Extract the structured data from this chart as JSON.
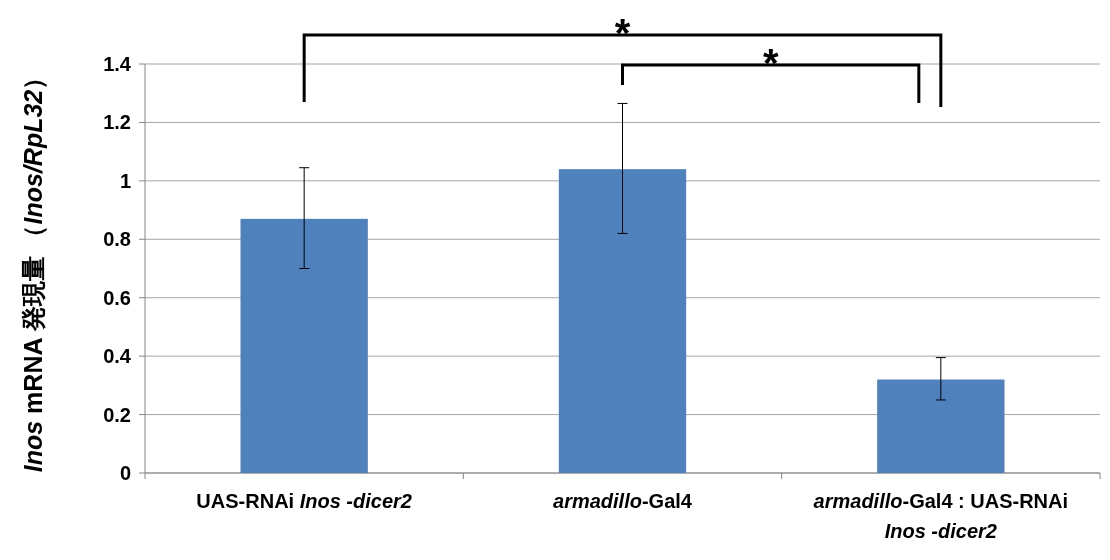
{
  "chart_data": {
    "type": "bar",
    "ylabel": "*Inos* mRNA 発現量 （*Inos/RpL32*）",
    "categories": [
      "UAS-RNAi *Inos -dicer2*",
      "*armadillo*-Gal4",
      "*armadillo*-Gal4 : UAS-RNAi *Inos -dicer2*"
    ],
    "values": [
      0.87,
      1.04,
      0.32
    ],
    "errors": [
      [
        0.7,
        1.045
      ],
      [
        0.82,
        1.265
      ],
      [
        0.25,
        0.395
      ]
    ],
    "color": "#4f81bd",
    "ylim": [
      0,
      1.4
    ],
    "yticks": [
      0,
      0.2,
      0.4,
      0.6,
      0.8,
      1,
      1.2,
      1.4
    ],
    "grid": "y",
    "annotations": [
      "*",
      "*"
    ]
  }
}
